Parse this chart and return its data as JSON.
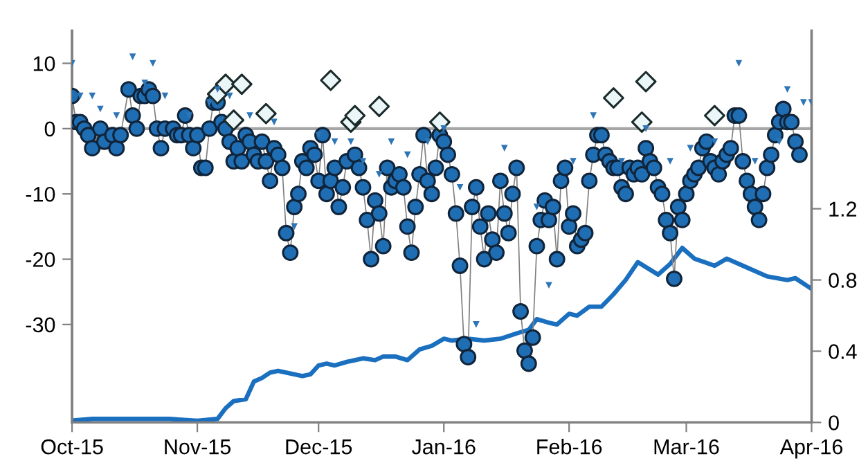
{
  "chart_data": {
    "type": "line",
    "xlim": [
      "2015-10-01",
      "2016-04-01"
    ],
    "xticks": [
      {
        "value": "2015-10-01",
        "label": "Oct-15"
      },
      {
        "value": "2015-11-01",
        "label": "Nov-15"
      },
      {
        "value": "2015-12-01",
        "label": "Dec-15"
      },
      {
        "value": "2016-01-01",
        "label": "Jan-16"
      },
      {
        "value": "2016-02-01",
        "label": "Feb-16"
      },
      {
        "value": "2016-03-01",
        "label": "Mar-16"
      },
      {
        "value": "2016-04-01",
        "label": "Apr-16"
      }
    ],
    "ylim": [
      -45,
      15
    ],
    "yticks": [
      -30,
      -20,
      -10,
      0,
      10
    ],
    "y2lim": [
      0,
      2.2
    ],
    "y2ticks": [
      0,
      0.4,
      0.8,
      1.2
    ],
    "ref_lines": [
      {
        "axis": "y",
        "value": 0,
        "color": "#a6a6a6"
      }
    ],
    "grid": false,
    "series": [
      {
        "type": "scatter",
        "marker": "triangle",
        "color": "#2e75b6",
        "x": [
          "2015-10-01",
          "2015-10-03",
          "2015-10-06",
          "2015-10-08",
          "2015-10-12",
          "2015-10-16",
          "2015-10-19",
          "2015-10-21",
          "2015-10-24",
          "2015-10-30",
          "2015-11-04",
          "2015-11-06",
          "2015-11-09",
          "2015-11-14",
          "2015-11-20",
          "2015-11-25",
          "2015-12-01",
          "2015-12-05",
          "2015-12-09",
          "2015-12-12",
          "2015-12-16",
          "2015-12-19",
          "2015-12-23",
          "2015-12-28",
          "2016-01-01",
          "2016-01-05",
          "2016-01-09",
          "2016-01-16",
          "2016-01-24",
          "2016-01-27",
          "2016-02-02",
          "2016-02-07",
          "2016-02-14",
          "2016-02-20",
          "2016-02-26",
          "2016-03-02",
          "2016-03-08",
          "2016-03-14",
          "2016-03-18",
          "2016-03-24",
          "2016-03-26",
          "2016-03-30",
          "2016-04-01"
        ],
        "values": [
          10,
          5,
          5,
          3,
          2,
          11,
          7,
          10,
          5,
          2,
          4,
          6,
          5,
          2,
          1,
          -15,
          -1,
          -2,
          -2,
          -5,
          -7,
          -2,
          -4,
          -2,
          0,
          -9,
          -30,
          -3,
          -12,
          -24,
          -5,
          2,
          -5,
          0,
          -5,
          -3,
          -2,
          10,
          -5,
          -2,
          6,
          4,
          4
        ]
      },
      {
        "marker": "circle",
        "color": "#1f6eb4",
        "x": [
          "2015-10-01",
          "2015-10-02",
          "2015-10-03",
          "2015-10-04",
          "2015-10-05",
          "2015-10-06",
          "2015-10-08",
          "2015-10-09",
          "2015-10-11",
          "2015-10-12",
          "2015-10-13",
          "2015-10-15",
          "2015-10-16",
          "2015-10-17",
          "2015-10-18",
          "2015-10-19",
          "2015-10-20",
          "2015-10-21",
          "2015-10-22",
          "2015-10-23",
          "2015-10-24",
          "2015-10-26",
          "2015-10-27",
          "2015-10-28",
          "2015-10-29",
          "2015-10-30",
          "2015-10-31",
          "2015-11-01",
          "2015-11-02",
          "2015-11-03",
          "2015-11-04",
          "2015-11-05",
          "2015-11-06",
          "2015-11-07",
          "2015-11-08",
          "2015-11-09",
          "2015-11-10",
          "2015-11-11",
          "2015-11-12",
          "2015-11-13",
          "2015-11-14",
          "2015-11-15",
          "2015-11-16",
          "2015-11-17",
          "2015-11-18",
          "2015-11-19",
          "2015-11-20",
          "2015-11-21",
          "2015-11-22",
          "2015-11-23",
          "2015-11-24",
          "2015-11-25",
          "2015-11-26",
          "2015-11-27",
          "2015-11-28",
          "2015-11-29",
          "2015-11-30",
          "2015-12-01",
          "2015-12-02",
          "2015-12-03",
          "2015-12-04",
          "2015-12-05",
          "2015-12-06",
          "2015-12-07",
          "2015-12-08",
          "2015-12-10",
          "2015-12-11",
          "2015-12-12",
          "2015-12-13",
          "2015-12-14",
          "2015-12-15",
          "2015-12-16",
          "2015-12-17",
          "2015-12-18",
          "2015-12-19",
          "2015-12-20",
          "2015-12-21",
          "2015-12-22",
          "2015-12-23",
          "2015-12-24",
          "2015-12-25",
          "2015-12-26",
          "2015-12-27",
          "2015-12-28",
          "2015-12-29",
          "2015-12-30",
          "2015-12-31",
          "2016-01-01",
          "2016-01-02",
          "2016-01-03",
          "2016-01-04",
          "2016-01-05",
          "2016-01-06",
          "2016-01-07",
          "2016-01-08",
          "2016-01-09",
          "2016-01-10",
          "2016-01-11",
          "2016-01-12",
          "2016-01-13",
          "2016-01-14",
          "2016-01-15",
          "2016-01-16",
          "2016-01-17",
          "2016-01-18",
          "2016-01-19",
          "2016-01-20",
          "2016-01-21",
          "2016-01-22",
          "2016-01-23",
          "2016-01-24",
          "2016-01-25",
          "2016-01-26",
          "2016-01-27",
          "2016-01-28",
          "2016-01-29",
          "2016-01-30",
          "2016-01-31",
          "2016-02-01",
          "2016-02-02",
          "2016-02-03",
          "2016-02-04",
          "2016-02-05",
          "2016-02-06",
          "2016-02-07",
          "2016-02-08",
          "2016-02-09",
          "2016-02-10",
          "2016-02-11",
          "2016-02-12",
          "2016-02-13",
          "2016-02-14",
          "2016-02-15",
          "2016-02-16",
          "2016-02-17",
          "2016-02-18",
          "2016-02-19",
          "2016-02-20",
          "2016-02-21",
          "2016-02-22",
          "2016-02-23",
          "2016-02-24",
          "2016-02-25",
          "2016-02-26",
          "2016-02-27",
          "2016-02-28",
          "2016-02-29",
          "2016-03-01",
          "2016-03-02",
          "2016-03-03",
          "2016-03-04",
          "2016-03-05",
          "2016-03-06",
          "2016-03-07",
          "2016-03-08",
          "2016-03-09",
          "2016-03-10",
          "2016-03-11",
          "2016-03-12",
          "2016-03-13",
          "2016-03-14",
          "2016-03-15",
          "2016-03-16",
          "2016-03-17",
          "2016-03-18",
          "2016-03-19",
          "2016-03-20",
          "2016-03-21",
          "2016-03-22",
          "2016-03-23",
          "2016-03-24",
          "2016-03-25",
          "2016-03-26",
          "2016-03-27",
          "2016-03-28",
          "2016-03-29"
        ],
        "values": [
          5,
          1,
          1,
          0,
          -1,
          -3,
          0,
          -2,
          -1,
          -3,
          -1,
          6,
          2,
          0,
          5,
          5,
          6,
          5,
          0,
          -3,
          0,
          0,
          -1,
          -1,
          2,
          -1,
          -3,
          -1,
          -6,
          -6,
          0,
          4,
          4,
          1,
          0,
          -2,
          -5,
          -3,
          -5,
          -1,
          -2,
          -4,
          -5,
          -2,
          -5,
          -8,
          -3,
          -4,
          -6,
          -16,
          -19,
          -12,
          -10,
          -5,
          -6,
          -3,
          -4,
          -8,
          -1,
          -10,
          -8,
          -6,
          -12,
          -9,
          -5,
          -4,
          -6,
          -9,
          -14,
          -20,
          -11,
          -13,
          -18,
          -6,
          -9,
          -8,
          -7,
          -9,
          -15,
          -19,
          -12,
          -7,
          -1,
          -8,
          -10,
          -6,
          -1,
          -2,
          -4,
          -7,
          -13,
          -21,
          -33,
          -35,
          -12,
          -9,
          -15,
          -20,
          -13,
          -17,
          -19,
          -8,
          -13,
          -16,
          -10,
          -6,
          -28,
          -34,
          -36,
          -32,
          -18,
          -14,
          -11,
          -14,
          -12,
          -20,
          -8,
          -6,
          -15,
          -13,
          -18,
          -17,
          -16,
          -8,
          -4,
          -1,
          -1,
          -4,
          -5,
          -6,
          -6,
          -9,
          -10,
          -6,
          -7,
          -6,
          -7,
          -3,
          -5,
          -6,
          -9,
          -10,
          -14,
          -16,
          -23,
          -12,
          -14,
          -10,
          -8,
          -7,
          -6,
          -3,
          -2,
          -5,
          -6,
          -7,
          -5,
          -4,
          -3,
          2,
          2,
          -5,
          -8,
          -10,
          -12,
          -14,
          -10,
          -6,
          -4,
          -1,
          1,
          3,
          1,
          1,
          -2,
          -4
        ]
      },
      {
        "type": "scatter",
        "marker": "diamond",
        "color": "#eaf6f8",
        "x": [
          "2015-11-06",
          "2015-11-08",
          "2015-11-10",
          "2015-11-12",
          "2015-11-18",
          "2015-12-04",
          "2015-12-09",
          "2015-12-10",
          "2015-12-16",
          "2015-12-31",
          "2016-02-12",
          "2016-02-19",
          "2016-02-20",
          "2016-03-08"
        ],
        "values": [
          5.3,
          6.8,
          1.3,
          6.8,
          2.3,
          7.4,
          1,
          2,
          3.4,
          1,
          4.7,
          1,
          7.2,
          2
        ]
      },
      {
        "type": "line",
        "axis": "y2",
        "marker": "none",
        "color": "#1a6fbf",
        "x": [
          "2015-10-01",
          "2015-10-06",
          "2015-10-15",
          "2015-10-25",
          "2015-11-01",
          "2015-11-06",
          "2015-11-08",
          "2015-11-10",
          "2015-11-13",
          "2015-11-15",
          "2015-11-17",
          "2015-11-19",
          "2015-11-21",
          "2015-11-23",
          "2015-11-25",
          "2015-11-27",
          "2015-11-29",
          "2015-12-01",
          "2015-12-03",
          "2015-12-05",
          "2015-12-08",
          "2015-12-12",
          "2015-12-15",
          "2015-12-17",
          "2015-12-20",
          "2015-12-23",
          "2015-12-26",
          "2015-12-29",
          "2016-01-01",
          "2016-01-03",
          "2016-01-07",
          "2016-01-11",
          "2016-01-15",
          "2016-01-19",
          "2016-01-22",
          "2016-01-24",
          "2016-01-27",
          "2016-01-29",
          "2016-02-01",
          "2016-02-03",
          "2016-02-06",
          "2016-02-09",
          "2016-02-12",
          "2016-02-15",
          "2016-02-18",
          "2016-02-23",
          "2016-02-26",
          "2016-02-29",
          "2016-03-03",
          "2016-03-08",
          "2016-03-11",
          "2016-03-16",
          "2016-03-21",
          "2016-03-26",
          "2016-03-28",
          "2016-04-01"
        ],
        "values": [
          0.01,
          0.02,
          0.02,
          0.02,
          0.01,
          0.02,
          0.08,
          0.12,
          0.13,
          0.23,
          0.25,
          0.28,
          0.29,
          0.28,
          0.27,
          0.26,
          0.27,
          0.32,
          0.33,
          0.32,
          0.34,
          0.36,
          0.35,
          0.37,
          0.37,
          0.35,
          0.41,
          0.43,
          0.47,
          0.46,
          0.47,
          0.46,
          0.47,
          0.5,
          0.52,
          0.58,
          0.56,
          0.55,
          0.61,
          0.6,
          0.65,
          0.65,
          0.72,
          0.8,
          0.9,
          0.83,
          0.89,
          0.98,
          0.92,
          0.88,
          0.92,
          0.87,
          0.82,
          0.8,
          0.81,
          0.75
        ]
      }
    ]
  }
}
